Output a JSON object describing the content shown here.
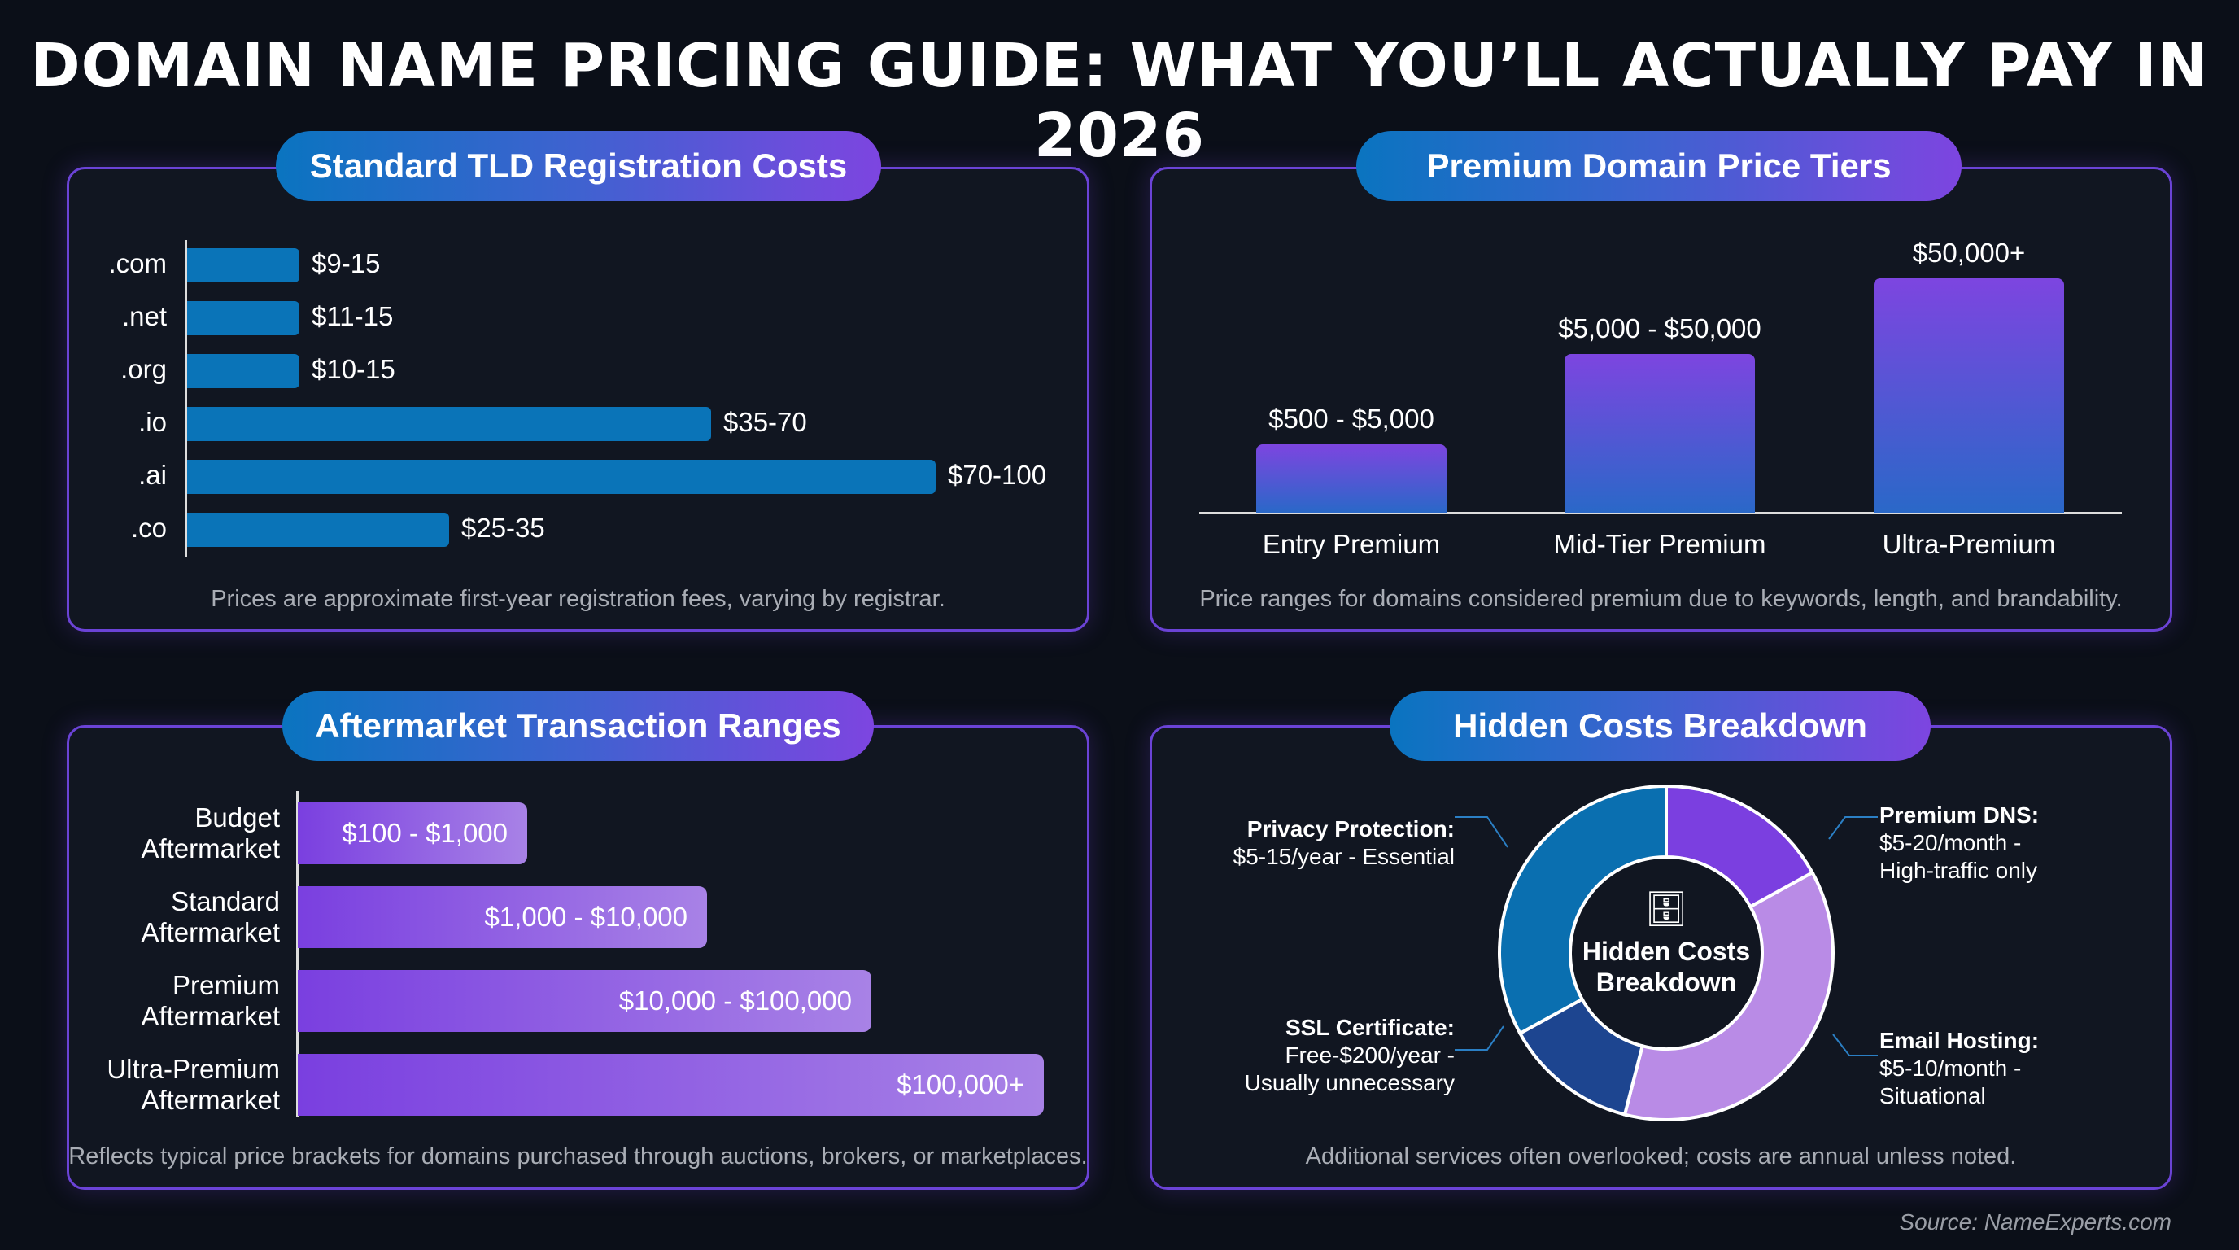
{
  "title": "DOMAIN NAME PRICING GUIDE: WHAT YOU’LL ACTUALLY PAY IN 2026",
  "chart_data": [
    {
      "type": "bar",
      "orientation": "horizontal",
      "title": "Standard TLD Registration Costs",
      "categories": [
        ".com",
        ".net",
        ".org",
        ".io",
        ".ai",
        ".co"
      ],
      "labels": [
        "$9-15",
        "$11-15",
        "$10-15",
        "$35-70",
        "$70-100",
        "$25-35"
      ],
      "low": [
        9,
        11,
        10,
        35,
        70,
        25
      ],
      "high": [
        15,
        15,
        15,
        70,
        100,
        35
      ],
      "color": "#0a74b8",
      "note": "Prices are approximate first-year registration fees, varying by registrar."
    },
    {
      "type": "bar",
      "orientation": "vertical",
      "title": "Premium Domain Price Tiers",
      "categories": [
        "Entry Premium",
        "Mid-Tier Premium",
        "Ultra-Premium"
      ],
      "labels": [
        "$500 - $5,000",
        "$5,000 - $50,000",
        "$50,000+"
      ],
      "note": "Price ranges for domains considered premium due to keywords, length, and brandability."
    },
    {
      "type": "bar",
      "orientation": "horizontal",
      "title": "Aftermarket Transaction Ranges",
      "categories": [
        [
          "Budget",
          "Aftermarket"
        ],
        [
          "Standard",
          "Aftermarket"
        ],
        [
          "Premium",
          "Aftermarket"
        ],
        [
          "Ultra-Premium",
          "Aftermarket"
        ]
      ],
      "labels": [
        "$100 - $1,000",
        "$1,000 - $10,000",
        "$10,000 - $100,000",
        "$100,000+"
      ],
      "note": "Reflects typical price brackets for domains purchased through auctions, brokers, or marketplaces."
    },
    {
      "type": "pie",
      "variant": "donut",
      "title": "Hidden Costs Breakdown",
      "center_label": [
        "Hidden Costs",
        "Breakdown"
      ],
      "slices": [
        {
          "name": "Premium DNS:",
          "desc": [
            "$5-20/month -",
            "High-traffic only"
          ],
          "share": 0.17,
          "color": "#7b3fe0"
        },
        {
          "name": "Email Hosting:",
          "desc": [
            "$5-10/month -",
            "Situational"
          ],
          "share": 0.37,
          "color": "#b98be6"
        },
        {
          "name": "SSL Certificate:",
          "desc": [
            "Free-$200/year -",
            "Usually unnecessary"
          ],
          "share": 0.13,
          "color": "#1d4590"
        },
        {
          "name": "Privacy Protection:",
          "desc": [
            "$5-15/year - Essential"
          ],
          "share": 0.33,
          "color": "#0a6fb0"
        }
      ],
      "note": "Additional services often overlooked; costs are annual unless noted."
    }
  ],
  "source": "Source: NameExperts.com"
}
